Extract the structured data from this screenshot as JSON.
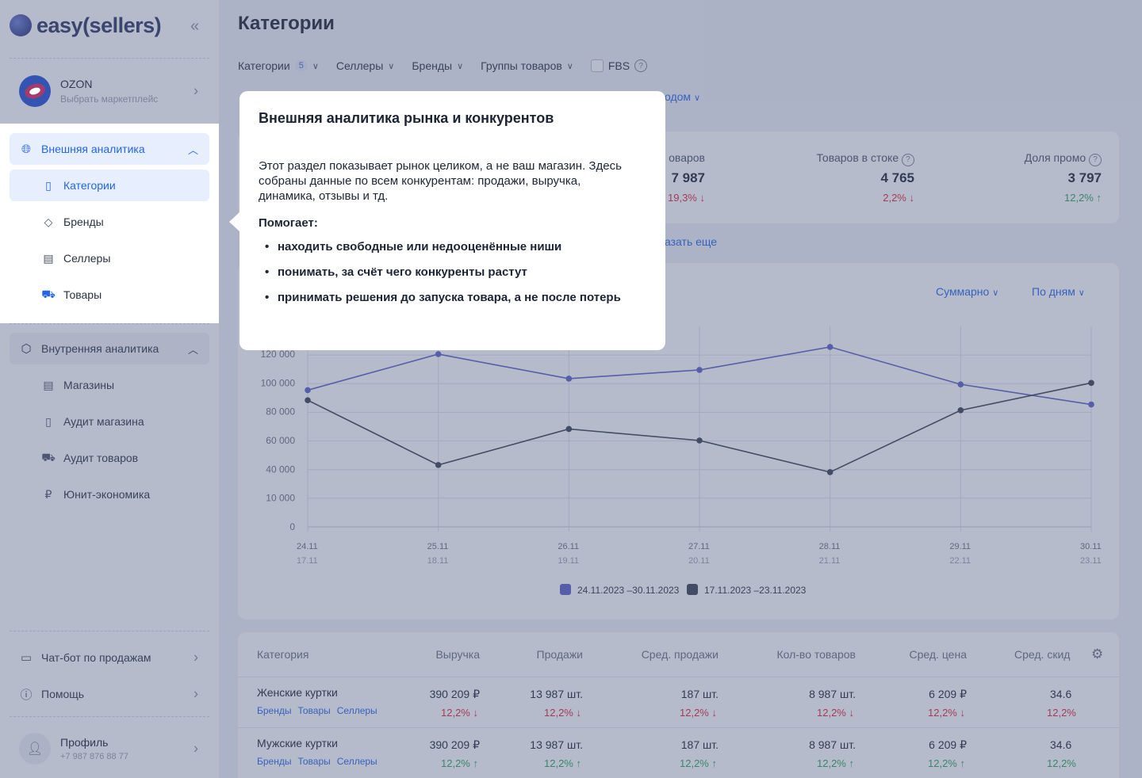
{
  "sidebar": {
    "brand": "easy(sellers)",
    "marketplace": {
      "name": "OZON",
      "sub": "Выбрать маркетплейс"
    },
    "external": {
      "label": "Внешняя аналитика",
      "items": [
        {
          "label": "Категории",
          "icon": "categories-icon"
        },
        {
          "label": "Бренды",
          "icon": "tag-icon"
        },
        {
          "label": "Селлеры",
          "icon": "store-icon"
        },
        {
          "label": "Товары",
          "icon": "cart-icon"
        }
      ]
    },
    "internal": {
      "label": "Внутренняя аналитика",
      "items": [
        {
          "label": "Магазины",
          "icon": "store-icon"
        },
        {
          "label": "Аудит магазина",
          "icon": "categories-icon"
        },
        {
          "label": "Аудит товаров",
          "icon": "cart-icon"
        },
        {
          "label": "Юнит-экономика",
          "icon": "ruble-icon"
        }
      ]
    },
    "chatbot": "Чат-бот по продажам",
    "help": "Помощь",
    "profile": {
      "name": "Профиль",
      "phone": "+7 987 876 88 77"
    }
  },
  "main": {
    "title": "Категории",
    "filters": {
      "categories": "Категории",
      "categories_count": "5",
      "sellers": "Селлеры",
      "brands": "Бренды",
      "groups": "Группы товаров",
      "fbs": "FBS"
    },
    "period_fragment": "одом",
    "kpis": [
      {
        "label": "оваров",
        "value": "7 987",
        "delta": "19,3%",
        "trend": "down"
      },
      {
        "label": "Товаров в стоке",
        "value": "4 765",
        "delta": "2,2%",
        "trend": "down"
      },
      {
        "label": "Доля промо",
        "value": "3 797",
        "delta": "12,2%",
        "trend": "up"
      }
    ],
    "show_more_fragment": "азать еще",
    "chart_controls": {
      "aggregate": "Суммарно",
      "granularity": "По дням"
    }
  },
  "chart_data": {
    "type": "line",
    "x": [
      "24.11",
      "25.11",
      "26.11",
      "27.11",
      "28.11",
      "29.11",
      "30.11"
    ],
    "x_secondary": [
      "17.11",
      "18.11",
      "19.11",
      "20.11",
      "21.11",
      "22.11",
      "23.11"
    ],
    "y_ticks": [
      "0",
      "10 000",
      "40 000",
      "60 000",
      "80 000",
      "100 000",
      "120 000"
    ],
    "series": [
      {
        "name": "24.11.2023 –30.11.2023",
        "color": "#5b5fc7",
        "values": [
          95000,
          120000,
          103000,
          109000,
          125000,
          99000,
          85000
        ]
      },
      {
        "name": "17.11.2023 –23.11.2023",
        "color": "#3a4050",
        "values": [
          88000,
          43000,
          68000,
          60000,
          37000,
          81000,
          100000
        ]
      }
    ]
  },
  "table": {
    "headers": [
      "Категория",
      "Выручка",
      "Продажи",
      "Сред. продажи",
      "Кол-во товаров",
      "Сред. цена",
      "Сред. скид"
    ],
    "link_labels": [
      "Бренды",
      "Товары",
      "Селлеры"
    ],
    "rows": [
      {
        "name": "Женские куртки",
        "revenue": "390 209 ₽",
        "sales": "13 987 шт.",
        "avg_sales": "187 шт.",
        "count": "8 987 шт.",
        "avg_price": "6 209 ₽",
        "avg_discount": "34.6",
        "delta": "12,2%",
        "trend": "down"
      },
      {
        "name": "Мужские куртки",
        "revenue": "390 209 ₽",
        "sales": "13 987 шт.",
        "avg_sales": "187 шт.",
        "count": "8 987 шт.",
        "avg_price": "6 209 ₽",
        "avg_discount": "34.6",
        "delta": "12,2%",
        "trend": "up"
      }
    ]
  },
  "tooltip": {
    "title": "Внешняя аналитика рынка и конкурентов",
    "body": "Этот раздел показывает рынок целиком, а не ваш магазин. Здесь собраны данные по всем конкурентам: продажи, выручка, динамика, отзывы и тд.",
    "helps_label": "Помогает:",
    "points": [
      "находить свободные или недооценённые ниши",
      "понимать, за счёт чего конкуренты растут",
      "принимать решения до запуска товара, а не после потерь"
    ]
  }
}
